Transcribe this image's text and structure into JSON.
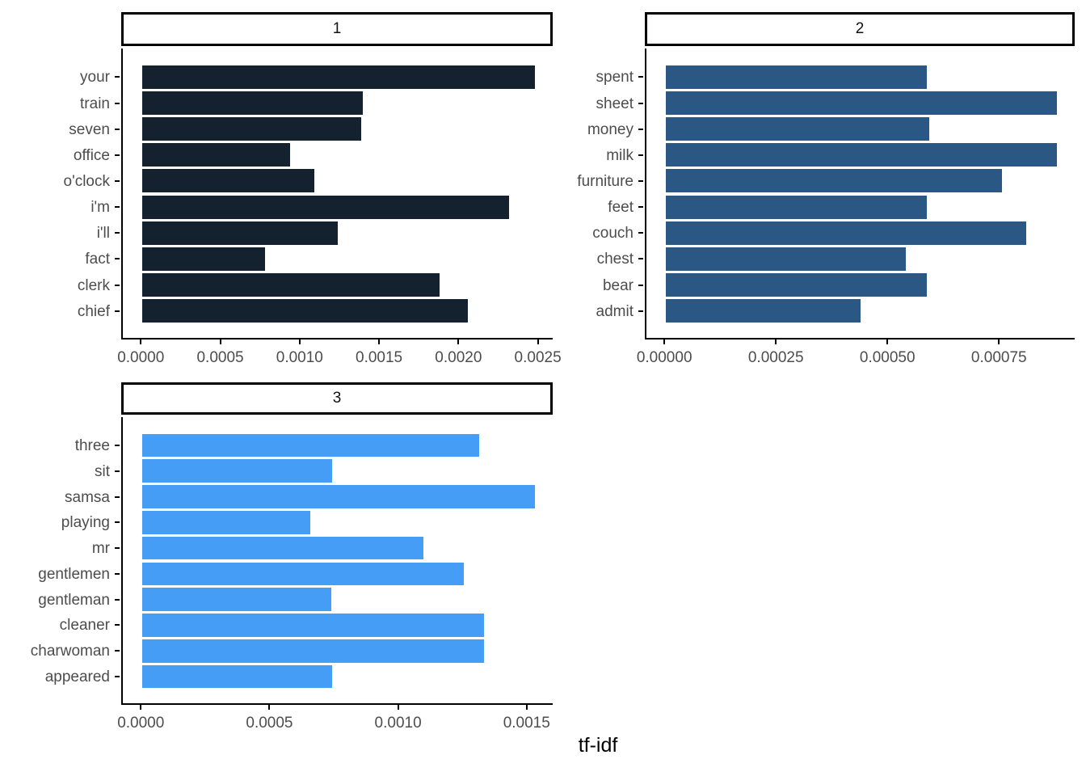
{
  "chart_data": {
    "type": "bar",
    "orientation": "horizontal",
    "xlabel": "tf-idf",
    "legend": "none",
    "grid": "off",
    "facets": [
      {
        "label": "1",
        "bar_color": "#14222f",
        "categories": [
          "your",
          "train",
          "seven",
          "office",
          "o'clock",
          "i'm",
          "i'll",
          "fact",
          "clerk",
          "chief"
        ],
        "values": [
          0.00247,
          0.00139,
          0.00138,
          0.00093,
          0.00108,
          0.00231,
          0.00123,
          0.00077,
          0.00187,
          0.00205
        ],
        "xlim": [
          0,
          0.0025
        ],
        "x_tick_values": [
          0,
          0.0005,
          0.001,
          0.0015,
          0.002,
          0.0025
        ],
        "x_tick_labels": [
          "0.0000",
          "0.0005",
          "0.0010",
          "0.0015",
          "0.0020",
          "0.0025"
        ]
      },
      {
        "label": "2",
        "bar_color": "#2a5783",
        "categories": [
          "spent",
          "sheet",
          "money",
          "milk",
          "furniture",
          "feet",
          "couch",
          "chest",
          "bear",
          "admit"
        ],
        "values": [
          0.000584,
          0.000876,
          0.00059,
          0.000876,
          0.000753,
          0.000584,
          0.000808,
          0.000538,
          0.000584,
          0.000437
        ],
        "xlim": [
          0,
          0.00088
        ],
        "x_tick_values": [
          0,
          0.00025,
          0.0005,
          0.00075
        ],
        "x_tick_labels": [
          "0.00000",
          "0.00025",
          "0.00050",
          "0.00075"
        ]
      },
      {
        "label": "3",
        "bar_color": "#459df5",
        "categories": [
          "three",
          "sit",
          "samsa",
          "playing",
          "mr",
          "gentlemen",
          "gentleman",
          "cleaner",
          "charwoman",
          "appeared"
        ],
        "values": [
          0.00131,
          0.000737,
          0.001525,
          0.000652,
          0.001092,
          0.001249,
          0.000735,
          0.001327,
          0.001327,
          0.000737
        ],
        "xlim": [
          0,
          0.0015
        ],
        "x_tick_values": [
          0,
          0.0005,
          0.001,
          0.0015
        ],
        "x_tick_labels": [
          "0.0000",
          "0.0005",
          "0.0010",
          "0.0015"
        ]
      }
    ],
    "style": {
      "axis_line_color": "#000000",
      "tick_color": "#000000",
      "tick_label_color": "#4d4d4d",
      "strip_border_color": "#000000",
      "strip_background": "#ffffff",
      "background": "#ffffff"
    }
  }
}
